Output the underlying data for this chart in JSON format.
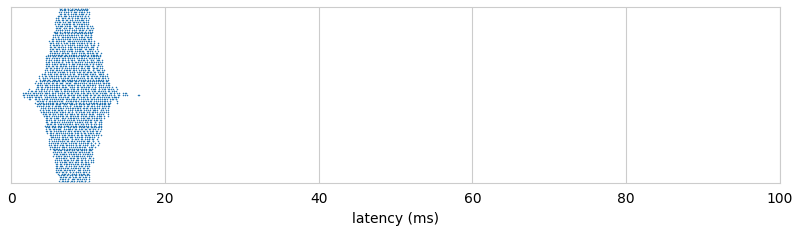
{
  "title": "",
  "xlabel": "latency (ms)",
  "ylabel": "",
  "xlim": [
    0,
    100
  ],
  "xticks": [
    0,
    20,
    40,
    60,
    80,
    100
  ],
  "ylim": [
    -0.55,
    0.55
  ],
  "dot_color": "#2878b5",
  "dot_size": 1.2,
  "figsize": [
    8.0,
    2.33
  ],
  "dpi": 100,
  "seed": 42,
  "n_points": 3000,
  "latency_mean": 8.0,
  "latency_std": 2.2,
  "latency_min": 1.5,
  "latency_max": 17.0,
  "bin_width": 0.25,
  "y_step": 0.012
}
